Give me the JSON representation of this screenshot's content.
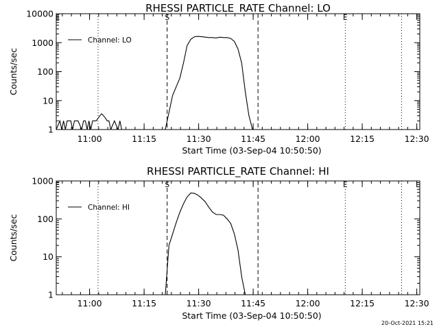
{
  "footer_timestamp": "20-Oct-2021 15:21",
  "chart_data": [
    {
      "type": "line",
      "title": "RHESSI PARTICLE_RATE Channel: LO",
      "xlabel": "Start Time (03-Sep-04 10:50:50)",
      "ylabel": "Counts/sec",
      "yscale": "log",
      "x_units": "minutes after 10:50:50",
      "xlim": [
        0,
        100
      ],
      "ylim": [
        1,
        10000
      ],
      "x_tick_labels": [
        "11:00",
        "11:15",
        "11:30",
        "11:45",
        "12:00",
        "12:15",
        "12:30"
      ],
      "x_tick_values": [
        9.17,
        24.17,
        39.17,
        54.17,
        69.17,
        84.17,
        99.17
      ],
      "y_tick_labels": [
        "1",
        "10",
        "100",
        "1000",
        "10000"
      ],
      "y_tick_values": [
        1,
        10,
        100,
        1000,
        10000
      ],
      "series": [
        {
          "name": "Channel: LO",
          "x": [
            0,
            1,
            1.5,
            2,
            2.5,
            3,
            4,
            4.5,
            5,
            6,
            7,
            7.5,
            8,
            8.5,
            9,
            9.5,
            10,
            11,
            12,
            12.5,
            13,
            13.5,
            14,
            14.5,
            15,
            16,
            17,
            17.5,
            18,
            30,
            32,
            33,
            34,
            35,
            36,
            37,
            38,
            39,
            40,
            41,
            42,
            43,
            44,
            45,
            46,
            47,
            48,
            49,
            50,
            51,
            52,
            53,
            54,
            55,
            56,
            57,
            58,
            59,
            60
          ],
          "values": [
            1,
            2,
            1,
            2,
            1,
            2,
            2,
            1,
            2,
            2,
            1,
            2,
            2,
            1,
            2,
            1,
            2,
            2,
            3,
            3.5,
            3,
            2.5,
            2,
            2,
            1,
            2,
            1,
            2,
            1,
            1,
            15,
            30,
            60,
            200,
            800,
            1300,
            1600,
            1650,
            1600,
            1550,
            1500,
            1500,
            1450,
            1550,
            1500,
            1500,
            1400,
            1100,
            600,
            200,
            20,
            3,
            1,
            1,
            1,
            1,
            1,
            1,
            1
          ]
        }
      ],
      "vertical_lines": [
        {
          "x": 11.5,
          "style": "dotted",
          "label": ""
        },
        {
          "x": 30.5,
          "style": "dashed",
          "label": "S"
        },
        {
          "x": 55.5,
          "style": "dashed",
          "label": ""
        },
        {
          "x": 79.5,
          "style": "dotted",
          "label": "E"
        },
        {
          "x": 95,
          "style": "dotted",
          "label": ""
        }
      ],
      "corner_marker": "E",
      "legend_position": "top-left"
    },
    {
      "type": "line",
      "title": "RHESSI PARTICLE_RATE Channel: HI",
      "xlabel": "Start Time (03-Sep-04 10:50:50)",
      "ylabel": "Counts/sec",
      "yscale": "log",
      "x_units": "minutes after 10:50:50",
      "xlim": [
        0,
        100
      ],
      "ylim": [
        1,
        1000
      ],
      "x_tick_labels": [
        "11:00",
        "11:15",
        "11:30",
        "11:45",
        "12:00",
        "12:15",
        "12:30"
      ],
      "x_tick_values": [
        9.17,
        24.17,
        39.17,
        54.17,
        69.17,
        84.17,
        99.17
      ],
      "y_tick_labels": [
        "1",
        "10",
        "100",
        "1000"
      ],
      "y_tick_values": [
        1,
        10,
        100,
        1000
      ],
      "series": [
        {
          "name": "Channel: HI",
          "x": [
            30,
            31,
            32,
            33,
            34,
            35,
            36,
            37,
            38,
            39,
            40,
            41,
            42,
            43,
            44,
            45,
            46,
            47,
            48,
            49,
            50,
            51,
            52,
            53,
            54
          ],
          "values": [
            1,
            20,
            40,
            80,
            150,
            250,
            380,
            480,
            470,
            420,
            350,
            280,
            200,
            150,
            130,
            130,
            125,
            100,
            75,
            40,
            15,
            3,
            1,
            1,
            1
          ]
        }
      ],
      "vertical_lines": [
        {
          "x": 11.5,
          "style": "dotted",
          "label": ""
        },
        {
          "x": 30.5,
          "style": "dashed",
          "label": "S"
        },
        {
          "x": 55.5,
          "style": "dashed",
          "label": ""
        },
        {
          "x": 79.5,
          "style": "dotted",
          "label": "E"
        },
        {
          "x": 95,
          "style": "dotted",
          "label": ""
        }
      ],
      "corner_marker": "E",
      "legend_position": "top-left"
    }
  ]
}
